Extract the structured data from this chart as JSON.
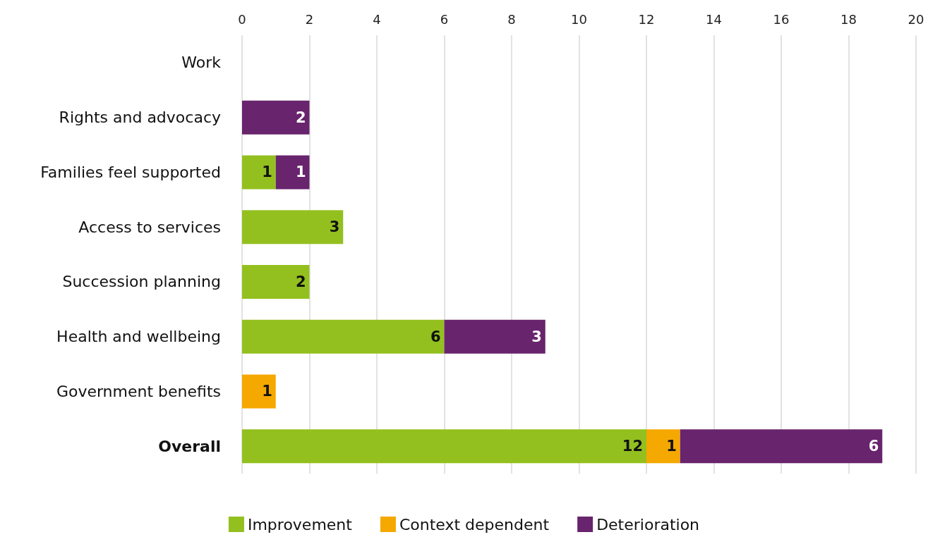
{
  "chart_data": {
    "type": "bar",
    "orientation": "horizontal",
    "stacked": true,
    "categories": [
      "Work",
      "Rights and advocacy",
      "Families feel supported",
      "Access to services",
      "Succession planning",
      "Health and wellbeing",
      "Government benefits",
      "Overall"
    ],
    "series": [
      {
        "name": "Improvement",
        "color": "#93c01f",
        "values": [
          null,
          null,
          1,
          3,
          2,
          6,
          null,
          12
        ]
      },
      {
        "name": "Context dependent",
        "color": "#f5a800",
        "values": [
          null,
          null,
          null,
          null,
          null,
          null,
          1,
          1
        ]
      },
      {
        "name": "Deterioration",
        "color": "#68246d",
        "values": [
          null,
          2,
          1,
          null,
          null,
          3,
          null,
          6
        ]
      }
    ],
    "xlim": [
      0,
      20
    ],
    "xticks": [
      0,
      2,
      4,
      6,
      8,
      10,
      12,
      14,
      16,
      18,
      20
    ],
    "grid": "x",
    "legend": "bottom",
    "data_labels": true
  }
}
